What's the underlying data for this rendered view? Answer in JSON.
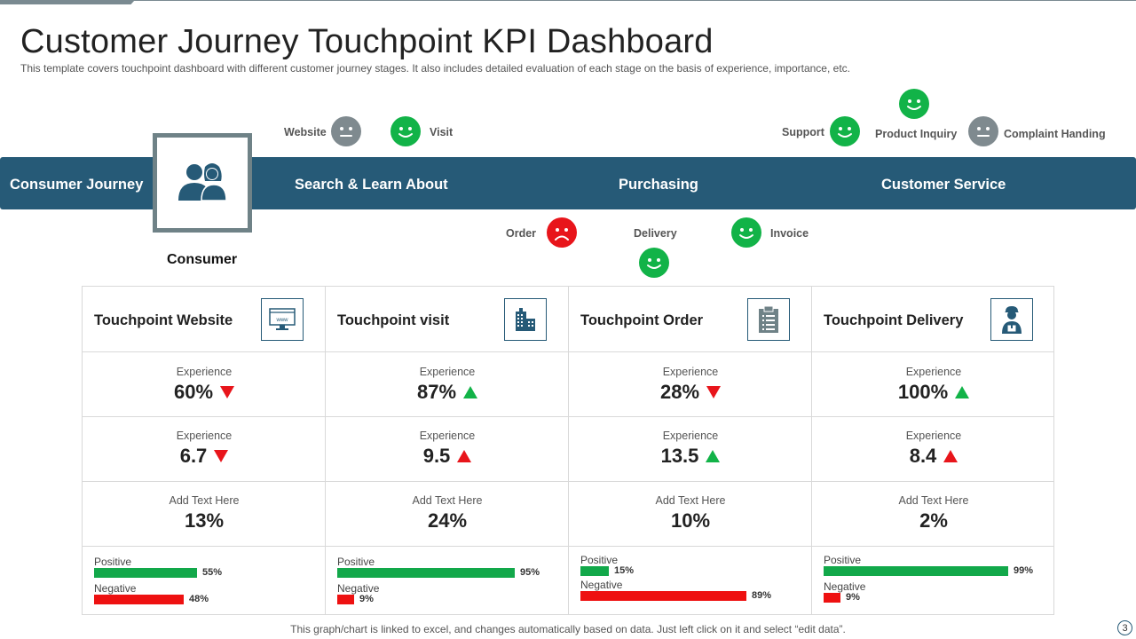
{
  "title": "Customer Journey Touchpoint KPI Dashboard",
  "subtitle": "This template covers touchpoint dashboard with different customer journey stages. It also includes detailed evaluation of each stage on the basis of experience, importance, etc.",
  "colors": {
    "band": "#265a77",
    "positive": "#12b348",
    "negative": "#e8151b",
    "neutral": "#7f8a8f"
  },
  "band": {
    "journey_label": "Consumer Journey",
    "stages": [
      "Search & Learn About",
      "Purchasing",
      "Customer Service"
    ]
  },
  "consumer": {
    "label": "Consumer",
    "icon": "users-icon"
  },
  "touchpoints": {
    "website": {
      "label": "Website",
      "mood": "neutral"
    },
    "visit": {
      "label": "Visit",
      "mood": "happy"
    },
    "order": {
      "label": "Order",
      "mood": "sad"
    },
    "delivery": {
      "label": "Delivery",
      "mood": "happy"
    },
    "invoice": {
      "label": "Invoice",
      "mood": "happy"
    },
    "support": {
      "label": "Support",
      "mood": "happy"
    },
    "product_inquiry": {
      "label": "Product Inquiry",
      "mood": "happy"
    },
    "complaint": {
      "label": "Complaint Handing",
      "mood": "neutral"
    }
  },
  "cards": [
    {
      "title": "Touchpoint Website",
      "icon": "browser-icon",
      "row1": {
        "label": "Experience",
        "value": "60%",
        "trend": "down"
      },
      "row2": {
        "label": "Experience",
        "value": "6.7",
        "trend": "down"
      },
      "row3": {
        "label": "Add Text Here",
        "value": "13%"
      },
      "positive": {
        "label": "Positive",
        "value": "55%",
        "fraction": 0.55
      },
      "negative": {
        "label": "Negative",
        "value": "48%",
        "fraction": 0.48
      }
    },
    {
      "title": "Touchpoint visit",
      "icon": "building-icon",
      "row1": {
        "label": "Experience",
        "value": "87%",
        "trend": "up-green"
      },
      "row2": {
        "label": "Experience",
        "value": "9.5",
        "trend": "up-red"
      },
      "row3": {
        "label": "Add Text Here",
        "value": "24%"
      },
      "positive": {
        "label": "Positive",
        "value": "95%",
        "fraction": 0.95
      },
      "negative": {
        "label": "Negative",
        "value": "9%",
        "fraction": 0.09
      }
    },
    {
      "title": "Touchpoint Order",
      "icon": "clipboard-icon",
      "row1": {
        "label": "Experience",
        "value": "28%",
        "trend": "down"
      },
      "row2": {
        "label": "Experience",
        "value": "13.5",
        "trend": "up-green"
      },
      "row3": {
        "label": "Add Text Here",
        "value": "10%"
      },
      "positive": {
        "label": "Positive",
        "value": "15%",
        "fraction": 0.15
      },
      "negative": {
        "label": "Negative",
        "value": "89%",
        "fraction": 0.89
      }
    },
    {
      "title": "Touchpoint Delivery",
      "icon": "delivery-person-icon",
      "row1": {
        "label": "Experience",
        "value": "100%",
        "trend": "up-green"
      },
      "row2": {
        "label": "Experience",
        "value": "8.4",
        "trend": "up-red"
      },
      "row3": {
        "label": "Add Text Here",
        "value": "2%"
      },
      "positive": {
        "label": "Positive",
        "value": "99%",
        "fraction": 0.99
      },
      "negative": {
        "label": "Negative",
        "value": "9%",
        "fraction": 0.09
      }
    }
  ],
  "footer": "This graph/chart is linked to excel, and changes automatically based on data. Just left click on it and select “edit data”.",
  "page_number": "3"
}
